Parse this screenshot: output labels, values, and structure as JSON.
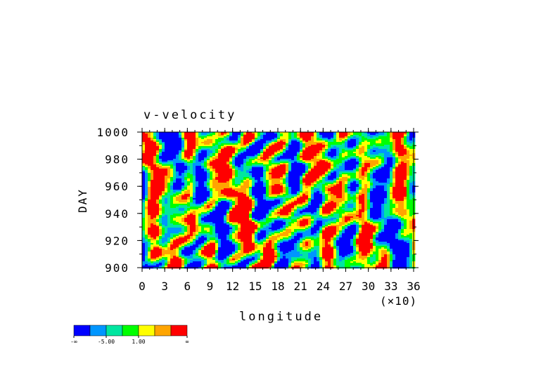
{
  "chart_data": {
    "type": "heatmap",
    "title": "v-velocity",
    "xlabel": "longitude",
    "x_multiplier_label": "(×10)",
    "ylabel": "DAY",
    "xlim": [
      0,
      36
    ],
    "ylim": [
      900,
      1000
    ],
    "x_ticks": [
      0,
      3,
      6,
      9,
      12,
      15,
      18,
      21,
      24,
      27,
      30,
      33,
      36
    ],
    "y_ticks": [
      900,
      920,
      940,
      960,
      980,
      1000
    ],
    "x_tick_labels": [
      "0",
      "3",
      "6",
      "9",
      "12",
      "15",
      "18",
      "21",
      "24",
      "27",
      "30",
      "33",
      "36"
    ],
    "y_tick_labels": [
      "900",
      "920",
      "940",
      "960",
      "980",
      "1000"
    ],
    "grid": false,
    "pattern_note": "noisy field of blue/cyan/green/yellow/orange/red patches tilted bands",
    "colorbar": {
      "colors": [
        "#0000ff",
        "#0096ff",
        "#00e6a0",
        "#00ff00",
        "#ffff00",
        "#ffa500",
        "#ff0000"
      ],
      "labels": [
        "-∞",
        "-5.00",
        "1.00",
        "∞"
      ],
      "label_positions": [
        0,
        2,
        4,
        7
      ]
    }
  }
}
